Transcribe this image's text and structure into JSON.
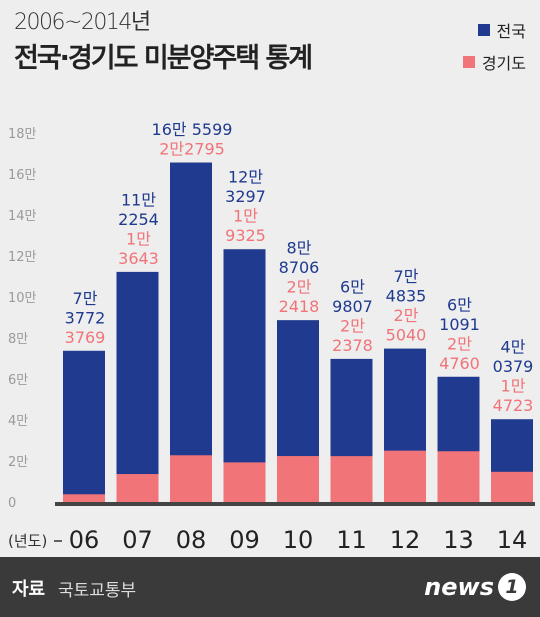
{
  "header": {
    "subtitle": "2006~2014년",
    "title": "전국·경기도 미분양주택 통계"
  },
  "legend": [
    {
      "label": "전국",
      "color": "#1f3a8f"
    },
    {
      "label": "경기도",
      "color": "#f07478"
    }
  ],
  "footer": {
    "source_label": "자료",
    "source_value": "국토교통부",
    "logo_text": "news",
    "logo_badge": "1"
  },
  "chart_data": {
    "type": "bar",
    "xlabel": "(년도)",
    "categories": [
      "06",
      "07",
      "08",
      "09",
      "10",
      "11",
      "12",
      "13",
      "14"
    ],
    "yticks": [
      "0",
      "2만",
      "4만",
      "6만",
      "8만",
      "10만",
      "12만",
      "14만",
      "16만",
      "18만"
    ],
    "ylim": [
      0,
      180000
    ],
    "series": [
      {
        "name": "전국",
        "color": "#1f3a8f",
        "values": [
          73772,
          112254,
          165599,
          123297,
          88706,
          69807,
          74835,
          61091,
          40379
        ],
        "labels": [
          [
            "7만",
            "3772"
          ],
          [
            "11만",
            "2254"
          ],
          [
            "16만 5599"
          ],
          [
            "12만",
            "3297"
          ],
          [
            "8만",
            "8706"
          ],
          [
            "6만",
            "9807"
          ],
          [
            "7만",
            "4835"
          ],
          [
            "6만",
            "1091"
          ],
          [
            "4만",
            "0379"
          ]
        ]
      },
      {
        "name": "경기도",
        "color": "#f07478",
        "values": [
          3769,
          13643,
          22795,
          19325,
          22418,
          22378,
          25040,
          24760,
          14723
        ],
        "labels": [
          [
            "3769"
          ],
          [
            "1만",
            "3643"
          ],
          [
            "2만2795"
          ],
          [
            "1만",
            "9325"
          ],
          [
            "2만",
            "2418"
          ],
          [
            "2만",
            "2378"
          ],
          [
            "2만",
            "5040"
          ],
          [
            "2만",
            "4760"
          ],
          [
            "1만",
            "4723"
          ]
        ]
      }
    ]
  }
}
